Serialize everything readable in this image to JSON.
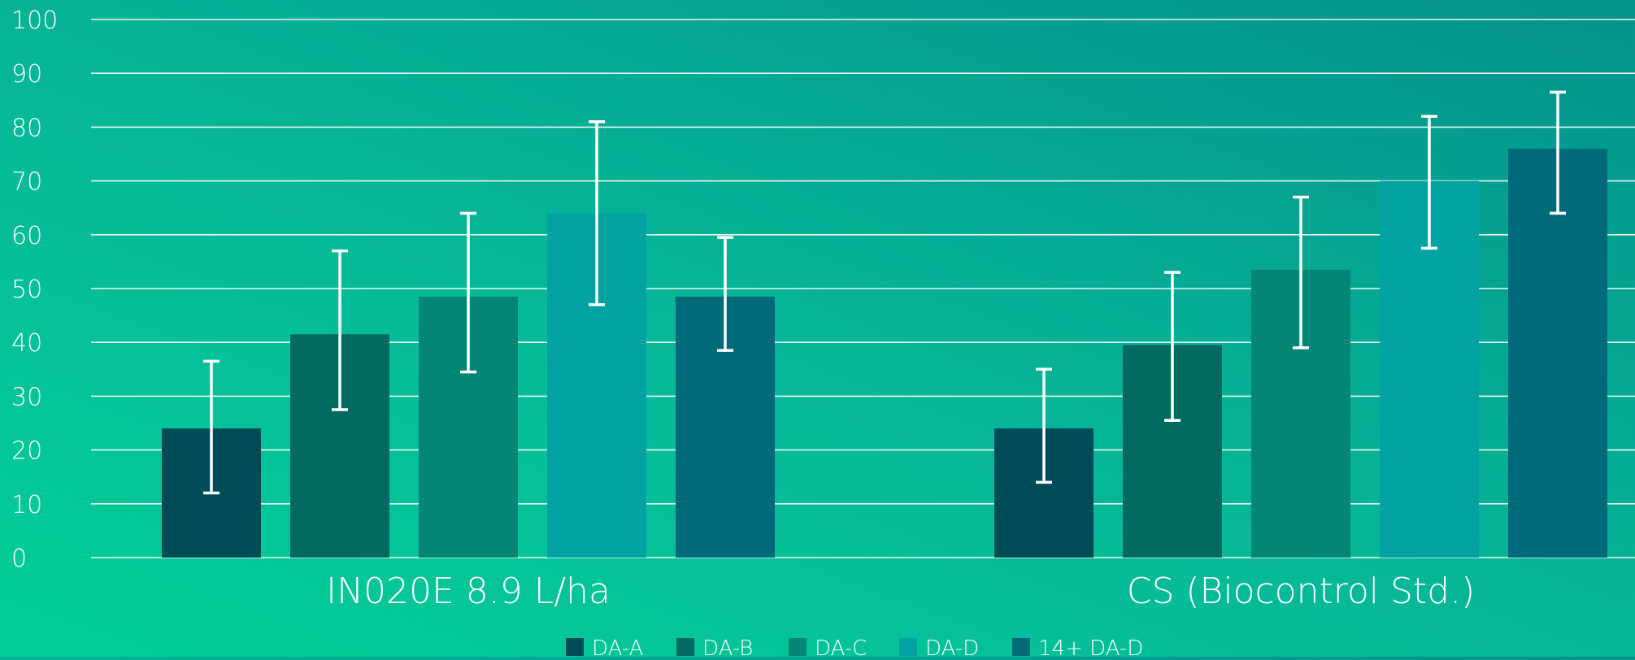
{
  "chart_data": {
    "type": "bar",
    "categories": [
      "IN020E 8.9 L/ha",
      "CS (Biocontrol Std.)"
    ],
    "series": [
      {
        "name": "DA-A",
        "color": "#004b58",
        "values": [
          24,
          24
        ],
        "err_low": [
          12,
          14
        ],
        "err_high": [
          36.5,
          35
        ]
      },
      {
        "name": "DA-B",
        "color": "#036a62",
        "values": [
          41.5,
          39.5
        ],
        "err_low": [
          27.5,
          25.5
        ],
        "err_high": [
          57,
          53
        ]
      },
      {
        "name": "DA-C",
        "color": "#038676",
        "values": [
          48.5,
          53.5
        ],
        "err_low": [
          34.5,
          39
        ],
        "err_high": [
          64,
          67
        ]
      },
      {
        "name": "DA-D",
        "color": "#02a2a2",
        "values": [
          64,
          70
        ],
        "err_low": [
          47,
          57.5
        ],
        "err_high": [
          81,
          82
        ]
      },
      {
        "name": "14+ DA-D",
        "color": "#016a7a",
        "values": [
          48.5,
          76
        ],
        "err_low": [
          38.5,
          64
        ],
        "err_high": [
          59.5,
          86.5
        ]
      }
    ],
    "ylim": [
      0,
      100
    ],
    "yticks": [
      0,
      10,
      20,
      30,
      40,
      50,
      60,
      70,
      80,
      90,
      100
    ],
    "grid": true,
    "legend": "bottom-center",
    "title": "",
    "xlabel": "",
    "ylabel": ""
  }
}
